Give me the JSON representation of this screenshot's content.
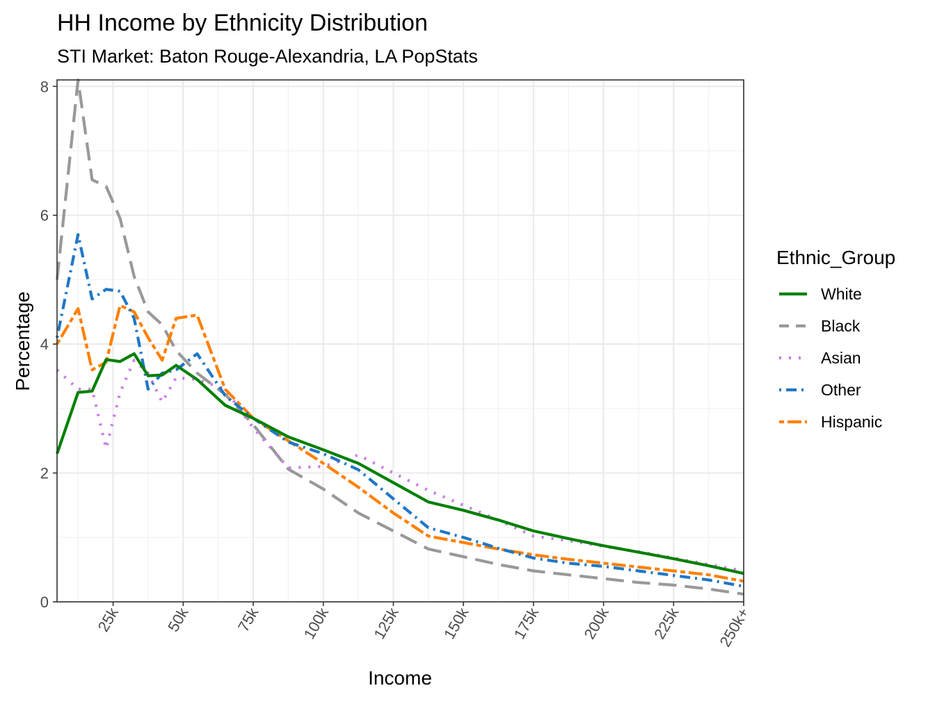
{
  "chart_data": {
    "type": "line",
    "title": "HH Income by Ethnicity Distribution",
    "subtitle": "STI Market: Baton Rouge-Alexandria, LA PopStats",
    "xlabel": "Income",
    "ylabel": "Percentage",
    "xlim": [
      5,
      250
    ],
    "ylim": [
      0,
      8.1
    ],
    "x_ticks": [
      25,
      50,
      75,
      100,
      125,
      150,
      175,
      200,
      225,
      250
    ],
    "x_tick_labels": [
      "25k",
      "50k",
      "75k",
      "100k",
      "125k",
      "150k",
      "175k",
      "200k",
      "225k",
      "250k+"
    ],
    "y_ticks": [
      0,
      2,
      4,
      6,
      8
    ],
    "y_tick_labels": [
      "0",
      "2",
      "4",
      "6",
      "8"
    ],
    "grid": true,
    "legend_title": "Ethnic_Group",
    "legend_position": "right",
    "x": [
      5,
      12.5,
      17.5,
      22.5,
      27.5,
      32.5,
      37.5,
      42.5,
      47.5,
      55,
      65,
      75,
      87.5,
      100,
      112.5,
      125,
      137.5,
      150,
      162.5,
      175,
      187.5,
      200,
      212.5,
      225,
      237.5,
      250
    ],
    "series": [
      {
        "name": "White",
        "color": "#008000",
        "dash": "solid",
        "values": [
          2.3,
          3.25,
          3.27,
          3.76,
          3.73,
          3.85,
          3.51,
          3.52,
          3.67,
          3.45,
          3.05,
          2.85,
          2.56,
          2.36,
          2.15,
          1.85,
          1.55,
          1.42,
          1.27,
          1.1,
          0.98,
          0.87,
          0.77,
          0.67,
          0.56,
          0.44
        ]
      },
      {
        "name": "Black",
        "color": "#999999",
        "dash": "longdash",
        "values": [
          5.0,
          8.1,
          6.55,
          6.45,
          5.95,
          5.05,
          4.5,
          4.3,
          3.9,
          3.55,
          3.22,
          2.75,
          2.06,
          1.75,
          1.38,
          1.1,
          0.82,
          0.7,
          0.58,
          0.48,
          0.42,
          0.36,
          0.3,
          0.26,
          0.2,
          0.12
        ]
      },
      {
        "name": "Asian",
        "color": "#CC79E5",
        "dash": "dotted",
        "values": [
          3.6,
          3.3,
          3.3,
          2.38,
          3.25,
          3.75,
          3.55,
          3.1,
          3.48,
          3.45,
          3.3,
          2.7,
          2.08,
          2.1,
          2.28,
          2.0,
          1.73,
          1.5,
          1.27,
          1.02,
          0.95,
          0.86,
          0.78,
          0.68,
          0.58,
          0.48
        ]
      },
      {
        "name": "Other",
        "color": "#1F77C6",
        "dash": "dotdash",
        "values": [
          4.1,
          5.7,
          4.7,
          4.85,
          4.82,
          4.4,
          3.3,
          3.55,
          3.6,
          3.85,
          3.2,
          2.85,
          2.48,
          2.3,
          2.05,
          1.6,
          1.15,
          1.0,
          0.83,
          0.68,
          0.6,
          0.55,
          0.48,
          0.41,
          0.34,
          0.24
        ]
      },
      {
        "name": "Hispanic",
        "color": "#FF8000",
        "dash": "twodash",
        "values": [
          4.0,
          4.55,
          3.6,
          3.72,
          4.6,
          4.5,
          4.1,
          3.75,
          4.4,
          4.45,
          3.3,
          2.85,
          2.5,
          2.15,
          1.78,
          1.38,
          1.02,
          0.92,
          0.82,
          0.73,
          0.66,
          0.6,
          0.54,
          0.48,
          0.42,
          0.32
        ]
      }
    ]
  }
}
